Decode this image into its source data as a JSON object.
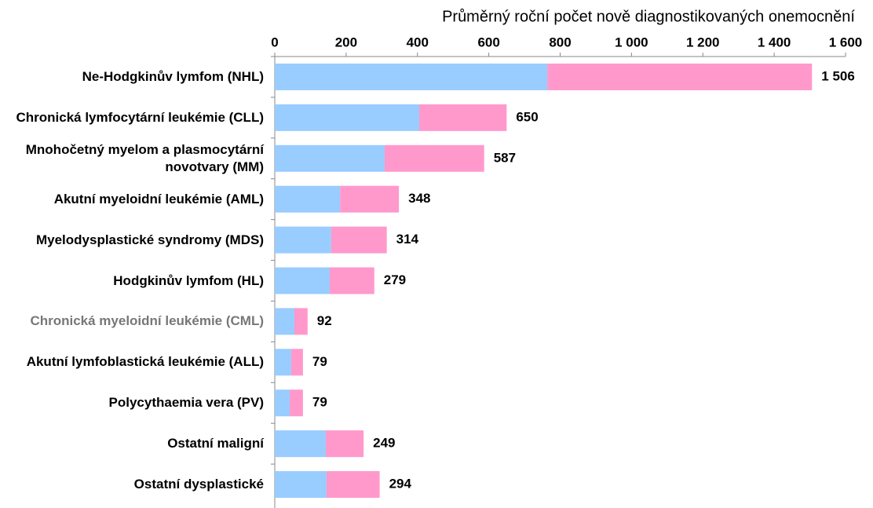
{
  "chart_data": {
    "type": "bar",
    "orientation": "horizontal",
    "stacked": true,
    "title": "Průměrný roční počet nově diagnostikovaných onemocnění",
    "categories": [
      "Ne-Hodgkinův lymfom (NHL)",
      "Chronická lymfocytární leukémie (CLL)",
      "Mnohočetný myelom a plasmocytární\nnovotvary (MM)",
      "Akutní myeloidní leukémie (AML)",
      "Myelodysplastické syndromy (MDS)",
      "Hodgkinův lymfom (HL)",
      "Chronická myeloidní leukémie (CML)",
      "Akutní lymfoblastická leukémie (ALL)",
      "Polycythaemia vera (PV)",
      "Ostatní maligní",
      "Ostatní dysplastické"
    ],
    "series": [
      {
        "color": "#99ccff",
        "values": [
          764,
          405,
          308,
          183,
          158,
          154,
          55,
          46,
          42,
          143,
          145
        ]
      },
      {
        "color": "#ff99cc",
        "values": [
          742,
          245,
          279,
          165,
          156,
          125,
          37,
          33,
          37,
          106,
          149
        ]
      }
    ],
    "totals": [
      1506,
      650,
      587,
      348,
      314,
      279,
      92,
      79,
      79,
      249,
      294
    ],
    "total_labels": [
      "1 506",
      "650",
      "587",
      "348",
      "314",
      "279",
      "92",
      "79",
      "79",
      "249",
      "294"
    ],
    "xlim": [
      0,
      1600
    ],
    "xticks": [
      0,
      200,
      400,
      600,
      800,
      {
        "value": 1000,
        "label": "1 000"
      },
      {
        "value": 1200,
        "label": "1 200"
      },
      {
        "value": 1400,
        "label": "1 400"
      },
      {
        "value": 1600,
        "label": "1 600"
      }
    ]
  }
}
